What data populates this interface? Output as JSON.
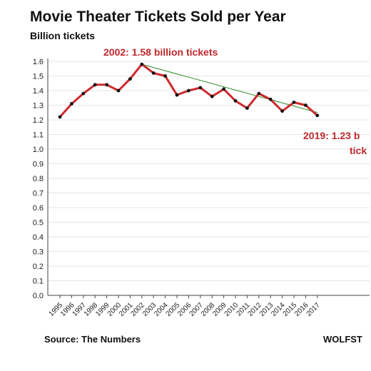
{
  "chart_data": {
    "type": "line",
    "title": "Movie Theater Tickets Sold per Year",
    "ylabel": "Billion tickets",
    "xlabel": "",
    "ylim": [
      0,
      1.6
    ],
    "y_ticks": [
      "0.0",
      "0.1",
      "0.2",
      "0.3",
      "0.4",
      "0.5",
      "0.6",
      "0.7",
      "0.8",
      "0.9",
      "1.0",
      "1.1",
      "1.2",
      "1.3",
      "1.4",
      "1.5",
      "1.6"
    ],
    "grid": true,
    "categories": [
      "1995",
      "1996",
      "1997",
      "1998",
      "1999",
      "2000",
      "2001",
      "2002",
      "2003",
      "2004",
      "2005",
      "2006",
      "2007",
      "2008",
      "2009",
      "2010",
      "2011",
      "2012",
      "2013",
      "2014",
      "2015",
      "2016",
      "2017"
    ],
    "series": [
      {
        "name": "",
        "color": "#d0282c",
        "values": [
          1.22,
          1.31,
          1.38,
          1.44,
          1.44,
          1.4,
          1.48,
          1.58,
          1.52,
          1.5,
          1.37,
          1.4,
          1.42,
          1.36,
          1.41,
          1.33,
          1.28,
          1.38,
          1.34,
          1.26,
          1.32,
          1.3,
          1.23
        ]
      }
    ],
    "trendline": {
      "color": "#2e8b2e",
      "from": {
        "x": "2002",
        "y": 1.58
      },
      "to": {
        "x": "2017",
        "y": 1.25
      }
    },
    "annotations": [
      {
        "text": "2002: 1.58 billion tickets"
      },
      {
        "text": "2019: 1.23 b"
      },
      {
        "text": "tick"
      }
    ],
    "source": "Source: The Numbers",
    "brand": "WOLFST"
  }
}
